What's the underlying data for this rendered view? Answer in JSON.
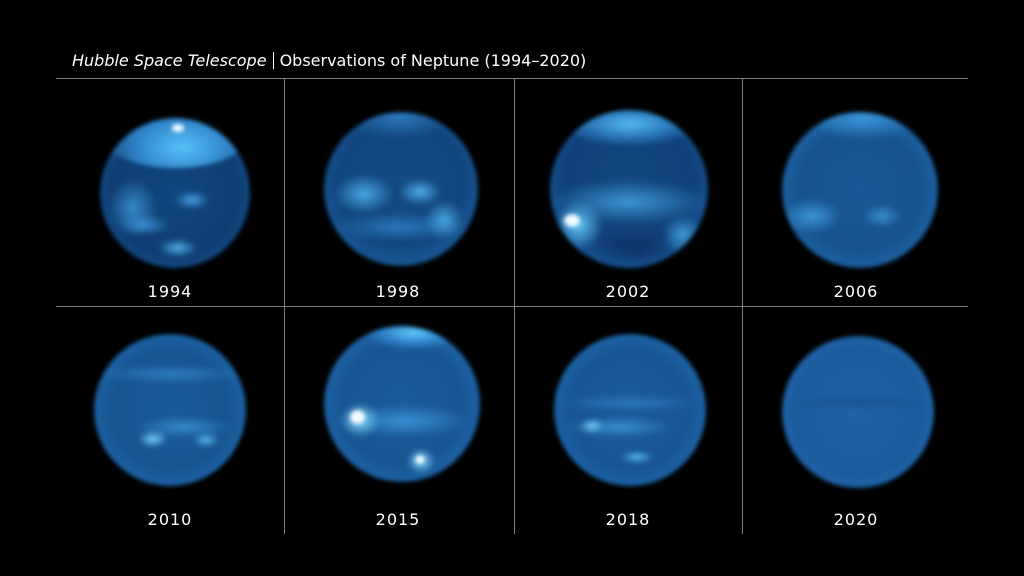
{
  "header": {
    "title_italic": "Hubble Space Telescope",
    "title_rest": "Observations of Neptune (1994–2020)"
  },
  "colors": {
    "background": "#000000",
    "planet_deep": "#0d3a6e",
    "planet_mid": "#1f73b8",
    "cloud_light": "#5ec8ff",
    "cloud_white": "#e8f8ff",
    "divider": "#7d7d7d"
  },
  "observations": [
    {
      "year": "1994"
    },
    {
      "year": "1998"
    },
    {
      "year": "2002"
    },
    {
      "year": "2006"
    },
    {
      "year": "2010"
    },
    {
      "year": "2015"
    },
    {
      "year": "2018"
    },
    {
      "year": "2020"
    }
  ]
}
